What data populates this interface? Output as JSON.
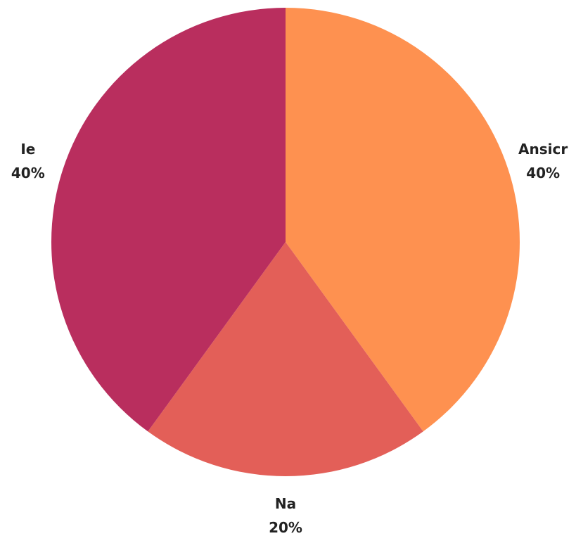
{
  "chart_data": {
    "type": "pie",
    "title": "",
    "start": "12 o'clock",
    "direction": "clockwise",
    "legend": "none",
    "slices": [
      {
        "label": "Ansicr",
        "value": 40,
        "percent_label": "40%",
        "color": "#fe9150"
      },
      {
        "label": "Na",
        "value": 20,
        "percent_label": "20%",
        "color": "#e35f58"
      },
      {
        "label": "Ie",
        "value": 40,
        "percent_label": "40%",
        "color": "#b92e5e"
      }
    ]
  }
}
